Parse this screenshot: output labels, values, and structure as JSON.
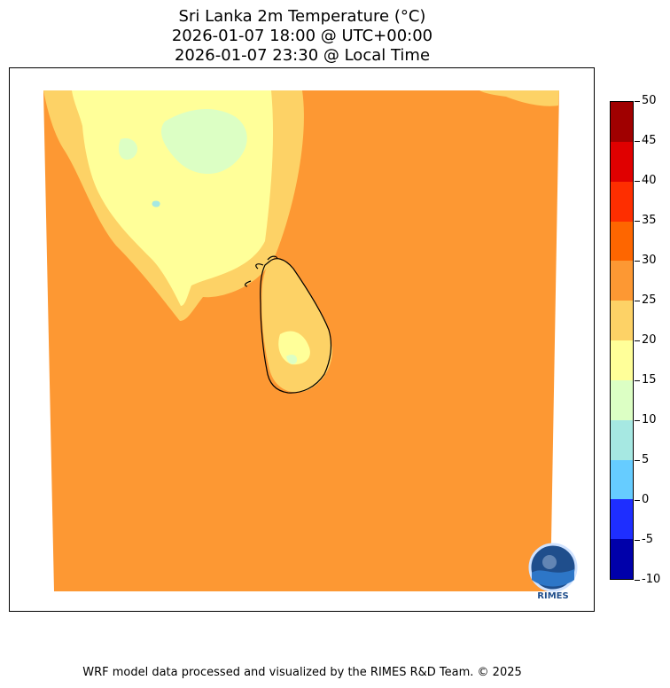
{
  "title": {
    "line1": "Sri Lanka 2m Temperature (°C)",
    "line2": "2026-01-07 18:00 @ UTC+00:00",
    "line3": "2026-01-07 23:30 @ Local Time"
  },
  "colorbar": {
    "bins": [
      {
        "from": -10,
        "to": -5,
        "color": "#0000aa"
      },
      {
        "from": -5,
        "to": 0,
        "color": "#1e2eff"
      },
      {
        "from": 0,
        "to": 5,
        "color": "#66ccff"
      },
      {
        "from": 5,
        "to": 10,
        "color": "#a6e8e2"
      },
      {
        "from": 10,
        "to": 15,
        "color": "#dcffc4"
      },
      {
        "from": 15,
        "to": 20,
        "color": "#ffff99"
      },
      {
        "from": 20,
        "to": 25,
        "color": "#fdd266"
      },
      {
        "from": 25,
        "to": 30,
        "color": "#fd9833"
      },
      {
        "from": 30,
        "to": 35,
        "color": "#fe6600"
      },
      {
        "from": 35,
        "to": 40,
        "color": "#fe2e00"
      },
      {
        "from": 40,
        "to": 45,
        "color": "#e00000"
      },
      {
        "from": 45,
        "to": 50,
        "color": "#a00000"
      }
    ],
    "ticks": [
      "50",
      "45",
      "40",
      "35",
      "30",
      "25",
      "20",
      "15",
      "10",
      "5",
      "0",
      "-5",
      "-10"
    ]
  },
  "map": {
    "colors": {
      "bg": "#fd9833",
      "band_20_25": "#fdd266",
      "band_15_20": "#ffff99",
      "band_10_15": "#dcffc4",
      "band_5_10": "#a6e8e2",
      "coastline": "#000000"
    }
  },
  "logo": {
    "text": "RIMES"
  },
  "footer": "WRF model data processed and visualized by the RIMES R&D Team. © 2025"
}
